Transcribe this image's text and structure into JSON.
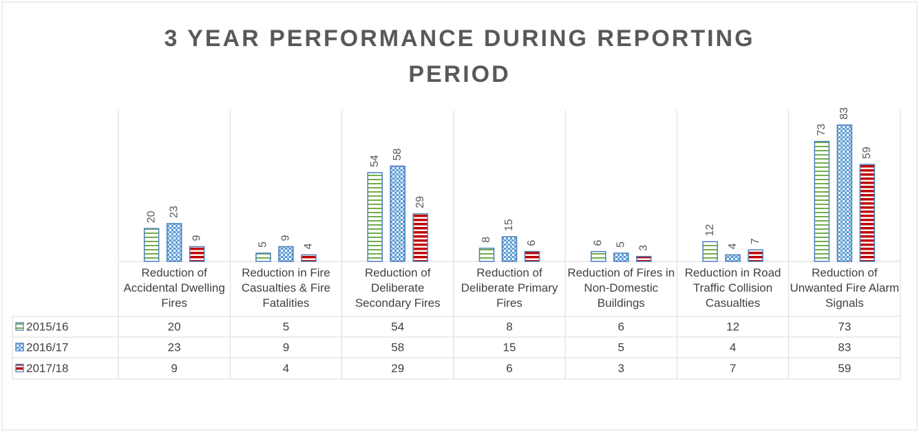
{
  "chart_data": {
    "type": "bar",
    "title": "3 YEAR PERFORMANCE DURING REPORTING PERIOD",
    "categories": [
      "Reduction of Accidental Dwelling Fires",
      "Reduction in Fire Casualties & Fire Fatalities",
      "Reduction of Deliberate Secondary Fires",
      "Reduction of Deliberate Primary Fires",
      "Reduction of Fires in Non-Domestic Buildings",
      "Reduction in Road Traffic Collision Casualties",
      "Reduction of Unwanted Fire Alarm Signals"
    ],
    "series": [
      {
        "name": "2015/16",
        "color": "#70ad47",
        "values": [
          20,
          5,
          54,
          8,
          6,
          12,
          73
        ]
      },
      {
        "name": "2016/17",
        "color": "#5b9bd5",
        "values": [
          23,
          9,
          58,
          15,
          5,
          4,
          83
        ]
      },
      {
        "name": "2017/18",
        "color": "#c00000",
        "values": [
          9,
          4,
          29,
          6,
          3,
          7,
          59
        ]
      }
    ],
    "ylim": [
      0,
      90
    ],
    "data_table": true
  }
}
